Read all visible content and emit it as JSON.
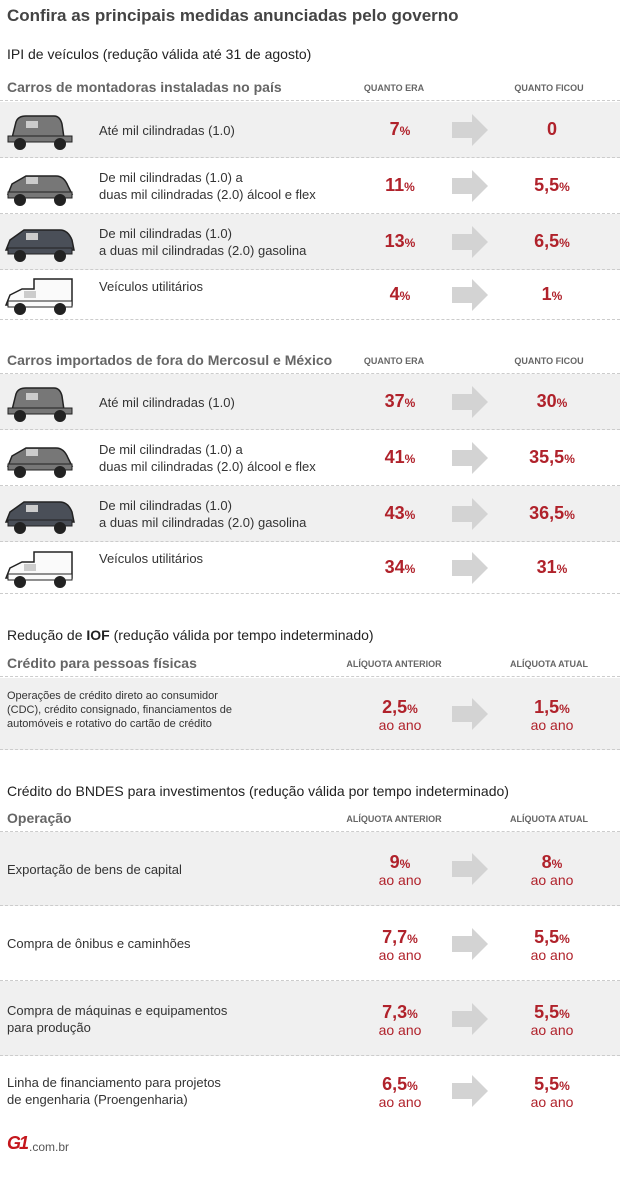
{
  "title": "Confira as principais medidas anunciadas pelo governo",
  "ipi": {
    "title": "IPI de veículos (redução válida até 31 de agosto)",
    "groups": [
      {
        "label": "Carros de montadoras instaladas no país",
        "col1": "QUANTO ERA",
        "col2": "QUANTO FICOU",
        "rows": [
          {
            "car": "hatchback-icon",
            "desc": "Até mil cilindradas (1.0)",
            "before": "7",
            "after": "0",
            "after_pct": false
          },
          {
            "car": "suv-icon",
            "desc": "De mil cilindradas (1.0) a\nduas mil cilindradas (2.0) álcool e flex",
            "before": "11",
            "after": "5,5",
            "after_pct": true
          },
          {
            "car": "station-wagon-icon",
            "desc": "De mil cilindradas (1.0)\na duas mil cilindradas (2.0) gasolina",
            "before": "13",
            "after": "6,5",
            "after_pct": true
          },
          {
            "car": "utility-van-icon",
            "desc": "Veículos utilitários",
            "before": "4",
            "after": "1",
            "after_pct": true
          }
        ]
      },
      {
        "label": "Carros importados de fora do Mercosul e México",
        "col1": "QUANTO ERA",
        "col2": "QUANTO FICOU",
        "rows": [
          {
            "car": "hatchback-icon",
            "desc": "Até mil cilindradas (1.0)",
            "before": "37",
            "after": "30",
            "after_pct": true
          },
          {
            "car": "suv-icon",
            "desc": "De mil cilindradas (1.0) a\nduas mil cilindradas (2.0) álcool e flex",
            "before": "41",
            "after": "35,5",
            "after_pct": true
          },
          {
            "car": "station-wagon-icon",
            "desc": "De mil cilindradas (1.0)\na duas mil cilindradas (2.0) gasolina",
            "before": "43",
            "after": "36,5",
            "after_pct": true
          },
          {
            "car": "utility-van-icon",
            "desc": "Veículos utilitários",
            "before": "34",
            "after": "31",
            "after_pct": true
          }
        ]
      }
    ]
  },
  "iof": {
    "title_pre": "Redução de ",
    "title_bold": "IOF",
    "title_post": " (redução válida por tempo indeterminado)",
    "label": "Crédito para pessoas físicas",
    "col1": "ALÍQUOTA ANTERIOR",
    "col2": "ALÍQUOTA ATUAL",
    "rows": [
      {
        "desc": "Operações de crédito direto ao consumidor\n(CDC), crédito consignado, financiamentos de\nautomóveis e rotativo do cartão de crédito",
        "before": "2,5",
        "after": "1,5"
      }
    ]
  },
  "bndes": {
    "title": "Crédito do BNDES para investimentos (redução válida por tempo indeterminado)",
    "label": "Operação",
    "col1": "ALÍQUOTA ANTERIOR",
    "col2": "ALÍQUOTA ATUAL",
    "rows": [
      {
        "desc": "Exportação de bens de capital",
        "before": "9",
        "after": "8"
      },
      {
        "desc": "Compra de ônibus e caminhões",
        "before": "7,7",
        "after": "5,5"
      },
      {
        "desc": "Compra de máquinas e equipamentos\npara produção",
        "before": "7,3",
        "after": "5,5"
      },
      {
        "desc": "Linha de financiamento para projetos\nde engenharia (Proengenharia)",
        "before": "6,5",
        "after": "5,5"
      }
    ]
  },
  "pct": "%",
  "per_year": "ao ano",
  "footer": {
    "logo": "G1",
    "domain": ".com.br"
  },
  "colors": {
    "value": "#b0222b",
    "row_bg": "#f0f0f0",
    "arrow": "#d3d3d3"
  }
}
